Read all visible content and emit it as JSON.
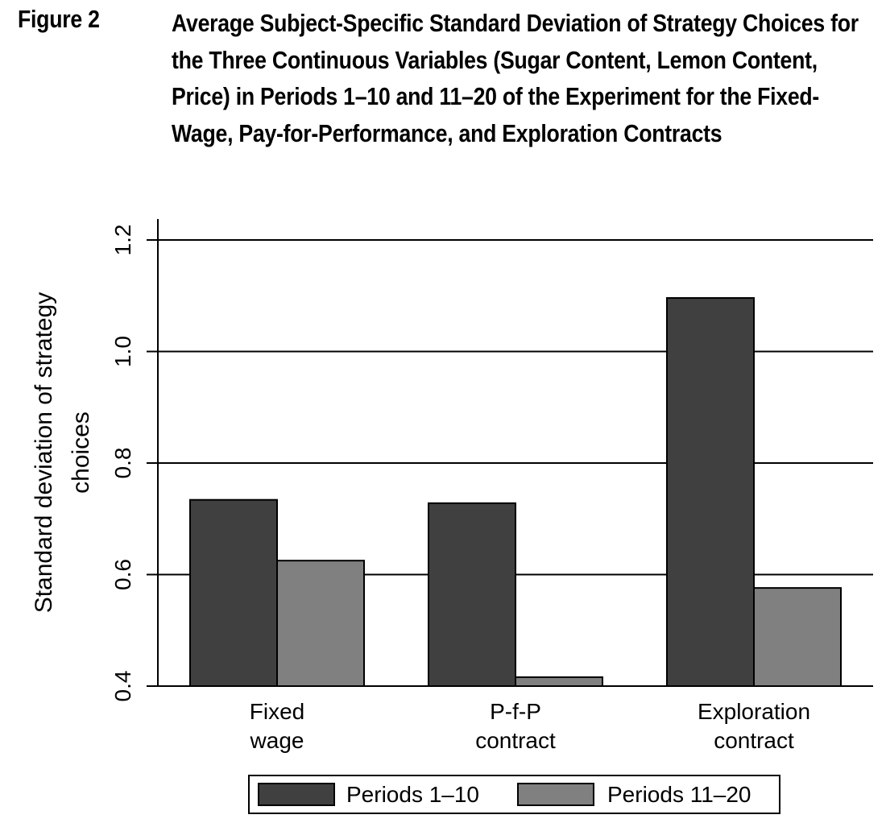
{
  "figure": {
    "label": "Figure 2",
    "title": "Average Subject-Specific Standard Deviation of Strategy Choices for the Three Continuous Variables (Sugar Content, Lemon Content, Price) in Periods 1–10 and 11–20 of the Experiment for the Fixed-Wage, Pay-for-Performance, and Exploration Contracts"
  },
  "chart_data": {
    "type": "bar",
    "ylabel": "Standard deviation of strategy choices",
    "ylabel_lines": [
      "Standard deviation of strategy",
      "choices"
    ],
    "ylim": [
      0.4,
      1.2
    ],
    "yticks": [
      0.4,
      0.6,
      0.8,
      1.0,
      1.2
    ],
    "ytick_labels": [
      "0.4",
      "0.6",
      "0.8",
      "1.0",
      "1.2"
    ],
    "grid": true,
    "categories": [
      "Fixed wage",
      "P-f-P contract",
      "Exploration contract"
    ],
    "category_lines": [
      [
        "Fixed",
        "wage"
      ],
      [
        "P-f-P",
        "contract"
      ],
      [
        "Exploration",
        "contract"
      ]
    ],
    "series": [
      {
        "name": "Periods 1–10",
        "values": [
          0.734,
          0.728,
          1.096
        ],
        "color": "#404040"
      },
      {
        "name": "Periods 11–20",
        "values": [
          0.625,
          0.416,
          0.576
        ],
        "color": "#808080"
      }
    ],
    "legend_position": "bottom"
  }
}
